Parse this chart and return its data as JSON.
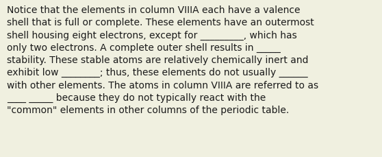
{
  "background_color": "#f0f0e0",
  "text": "Notice that the elements in column VIIIA each have a valence\nshell that is full or complete. These elements have an outermost\nshell housing eight electrons, except for _________, which has\nonly two electrons. A complete outer shell results in _____\nstability. These stable atoms are relatively chemically inert and\nexhibit low ________; thus, these elements do not usually ______\nwith other elements. The atoms in column VIIIA are referred to as\n____ _____ because they do not typically react with the\n\"common\" elements in other columns of the periodic table.",
  "font_size": 10.0,
  "font_color": "#1a1a1a",
  "font_family": "DejaVu Sans",
  "fig_width": 5.58,
  "fig_height": 2.3,
  "dpi": 100
}
